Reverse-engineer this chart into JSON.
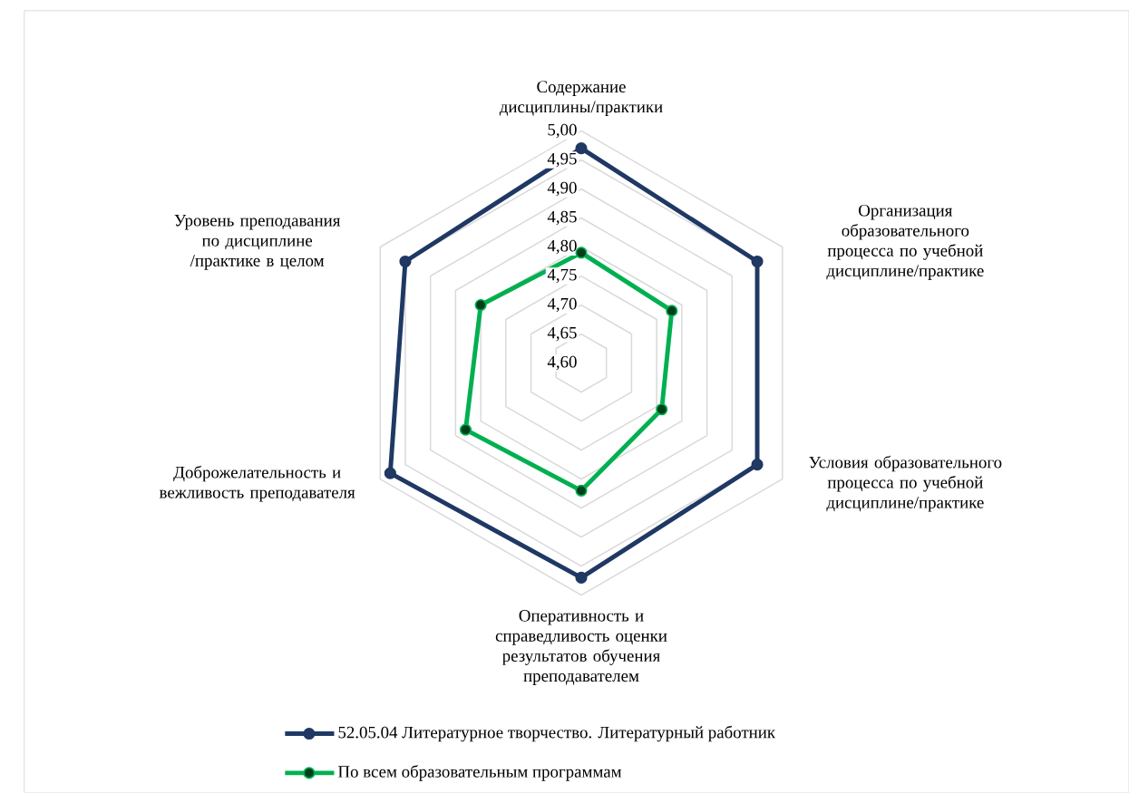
{
  "chart_data": {
    "type": "radar",
    "categories": [
      "Содержание дисциплины/практики",
      "Организация образовательного процесса по учебной дисциплине/практике",
      "Условия образовательного процесса по учебной дисциплине/практике",
      "Оперативность и справедливость оценки результатов обучения преподавателем",
      "Доброжелательность и вежливость преподавателя",
      "Уровень преподавания по дисциплине /практике в целом"
    ],
    "series": [
      {
        "name": "52.05.04 Литературное творчество. Литературный работник",
        "color": "#1f3864",
        "values": [
          4.97,
          4.95,
          4.95,
          4.97,
          4.98,
          4.95
        ]
      },
      {
        "name": "По всем образовательным программам",
        "color": "#00b050",
        "values": [
          4.79,
          4.78,
          4.76,
          4.82,
          4.83,
          4.8
        ]
      }
    ],
    "ylim": [
      4.6,
      5.0
    ],
    "yticks": [
      {
        "value": 4.6,
        "label": "4,60"
      },
      {
        "value": 4.65,
        "label": "4,65"
      },
      {
        "value": 4.7,
        "label": "4,70"
      },
      {
        "value": 4.75,
        "label": "4,75"
      },
      {
        "value": 4.8,
        "label": "4,80"
      },
      {
        "value": 4.85,
        "label": "4,85"
      },
      {
        "value": 4.9,
        "label": "4,90"
      },
      {
        "value": 4.95,
        "label": "4,95"
      },
      {
        "value": 5.0,
        "label": "5,00"
      }
    ],
    "grid": true,
    "legend": "bottom",
    "marker": "circle",
    "line_style": "solid"
  }
}
